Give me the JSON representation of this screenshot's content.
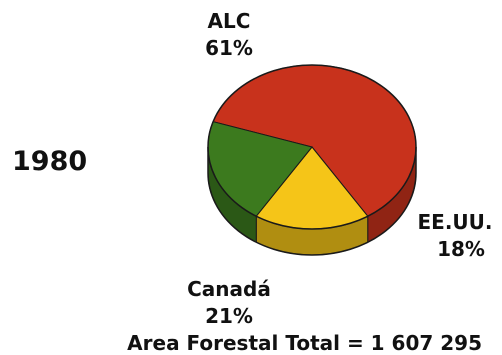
{
  "chart_data": {
    "type": "pie",
    "year_label": "1980",
    "categories": [
      "ALC",
      "EE.UU.",
      "Canadá"
    ],
    "values": [
      61,
      18,
      21
    ],
    "value_labels": [
      "61%",
      "18%",
      "21%"
    ],
    "colors": [
      "#c8321c",
      "#f5c518",
      "#3c7a1e"
    ],
    "footer": "Area Forestal Total = 1 607 295"
  }
}
